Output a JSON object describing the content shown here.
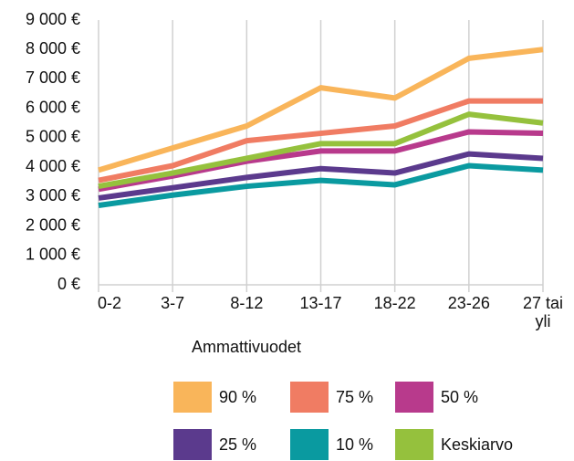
{
  "chart_data": {
    "type": "line",
    "x_label": "Ammattivuodet",
    "categories": [
      "0-2",
      "3-7",
      "8-12",
      "13-17",
      "18-22",
      "23-26",
      "27 tai yli"
    ],
    "series": [
      {
        "name": "90 %",
        "color": "#f9b55a",
        "values": [
          3900,
          4650,
          5400,
          6700,
          6350,
          7700,
          8000
        ]
      },
      {
        "name": "75 %",
        "color": "#f07c63",
        "values": [
          3550,
          4050,
          4900,
          5150,
          5400,
          6250,
          6250
        ]
      },
      {
        "name": "50 %",
        "color": "#b83a8c",
        "values": [
          3250,
          3700,
          4200,
          4550,
          4550,
          5200,
          5150
        ]
      },
      {
        "name": "25 %",
        "color": "#5b3a8d",
        "values": [
          2950,
          3300,
          3650,
          3950,
          3800,
          4450,
          4300
        ]
      },
      {
        "name": "10 %",
        "color": "#0a9aa0",
        "values": [
          2700,
          3050,
          3350,
          3550,
          3400,
          4050,
          3900
        ]
      },
      {
        "name": "Keskiarvo",
        "color": "#95c13d",
        "values": [
          3350,
          3800,
          4300,
          4800,
          4800,
          5800,
          5500
        ]
      }
    ],
    "ylim": [
      0,
      9000
    ],
    "yticks": [
      {
        "value": 0,
        "label": "0 €"
      },
      {
        "value": 1000,
        "label": "1 000 €"
      },
      {
        "value": 2000,
        "label": "2 000 €"
      },
      {
        "value": 3000,
        "label": "3 000 €"
      },
      {
        "value": 4000,
        "label": "4 000 €"
      },
      {
        "value": 5000,
        "label": "5 000 €"
      },
      {
        "value": 6000,
        "label": "6 000 €"
      },
      {
        "value": 7000,
        "label": "7 000 €"
      },
      {
        "value": 8000,
        "label": "8 000 €"
      },
      {
        "value": 9000,
        "label": "9 000 €"
      }
    ],
    "grid": true
  }
}
